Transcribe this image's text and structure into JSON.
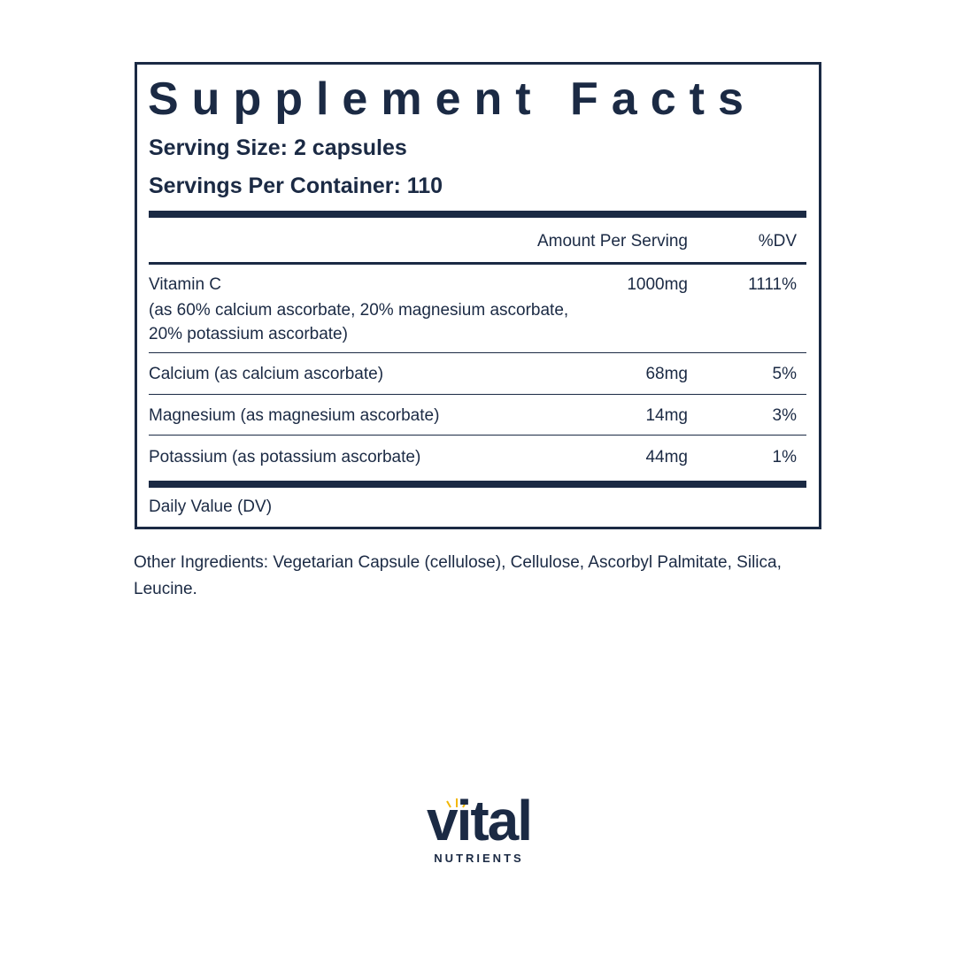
{
  "panel": {
    "title": "Supplement Facts",
    "serving_size": "Serving Size: 2 capsules",
    "servings_per_container": "Servings Per Container: 110",
    "columns": {
      "amount": "Amount Per Serving",
      "dv": "%DV"
    },
    "rows": [
      {
        "name": "Vitamin C",
        "details": [
          "(as 60% calcium ascorbate, 20% magnesium ascorbate,",
          "20% potassium ascorbate)"
        ],
        "amount": "1000mg",
        "dv": "1111%"
      },
      {
        "name": "Calcium (as calcium ascorbate)",
        "amount": "68mg",
        "dv": "5%"
      },
      {
        "name": "Magnesium (as magnesium ascorbate)",
        "amount": "14mg",
        "dv": "3%"
      },
      {
        "name": "Potassium (as potassium ascorbate)",
        "amount": "44mg",
        "dv": "1%"
      }
    ],
    "footnote": "Daily Value (DV)"
  },
  "other_ingredients": "Other Ingredients: Vegetarian Capsule (cellulose), Cellulose, Ascorbyl Palmitate, Silica, Leucine.",
  "logo": {
    "name": "vital",
    "tagline": "NUTRIENTS"
  }
}
